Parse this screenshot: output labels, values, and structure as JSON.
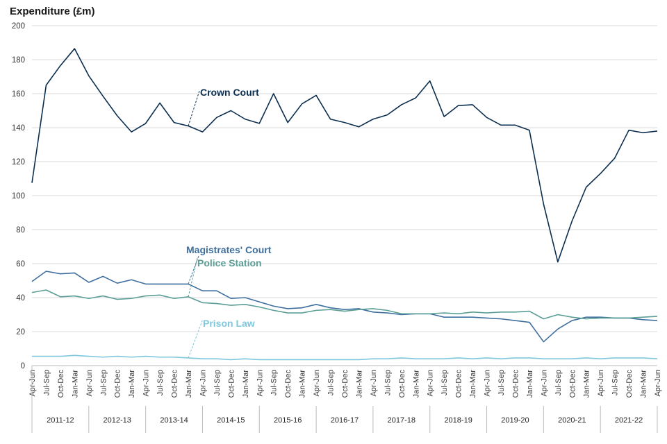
{
  "chart_data": {
    "type": "line",
    "ylabel": "Expenditure (£m)",
    "ylim": [
      0,
      200
    ],
    "yticks": [
      0,
      20,
      40,
      60,
      80,
      100,
      120,
      140,
      160,
      180,
      200
    ],
    "grid": true,
    "quarters": [
      "Apr-Jun",
      "Jul-Sep",
      "Oct-Dec",
      "Jan-Mar",
      "Apr-Jun",
      "Jul-Sep",
      "Oct-Dec",
      "Jan-Mar",
      "Apr-Jun",
      "Jul-Sep",
      "Oct-Dec",
      "Jan-Mar",
      "Apr-Jun",
      "Jul-Sep",
      "Oct-Dec",
      "Jan-Mar",
      "Apr-Jun",
      "Jul-Sep",
      "Oct-Dec",
      "Jan-Mar",
      "Apr-Jun",
      "Jul-Sep",
      "Oct-Dec",
      "Jan-Mar",
      "Apr-Jun",
      "Jul-Sep",
      "Oct-Dec",
      "Jan-Mar",
      "Apr-Jun",
      "Jul-Sep",
      "Oct-Dec",
      "Jan-Mar",
      "Apr-Jun",
      "Jul-Sep",
      "Oct-Dec",
      "Jan-Mar",
      "Apr-Jun",
      "Jul-Sep",
      "Oct-Dec",
      "Jan-Mar",
      "Apr-Jun",
      "Jul-Sep",
      "Oct-Dec",
      "Jan-Mar",
      "Apr-Jun"
    ],
    "financial_years": [
      "2011-12",
      "2012-13",
      "2013-14",
      "2014-15",
      "2015-16",
      "2016-17",
      "2017-18",
      "2018-19",
      "2019-20",
      "2020-21",
      "2021-22"
    ],
    "series": [
      {
        "name": "Crown Court",
        "color": "#0b2e4f",
        "values": [
          107.5,
          165,
          176.5,
          186.5,
          170.5,
          158.5,
          147,
          137.5,
          142.5,
          154.5,
          143,
          141,
          137.5,
          146,
          150,
          145,
          142.5,
          160,
          143,
          154,
          159,
          145,
          143,
          140.5,
          145,
          147.5,
          153.5,
          157.5,
          167.5,
          146.5,
          153,
          153.5,
          146,
          141.5,
          141.5,
          138.5,
          95,
          61,
          85,
          105,
          113,
          122,
          138.5,
          137,
          138
        ]
      },
      {
        "name": "Magistrates' Court",
        "color": "#3f6f9f",
        "values": [
          49.5,
          55.5,
          54,
          54.5,
          49,
          52.5,
          48.5,
          50.5,
          48,
          48,
          48,
          48,
          44,
          44,
          39.5,
          40,
          37.5,
          35,
          33.5,
          34,
          36,
          34,
          33,
          33.5,
          31.5,
          31,
          30,
          30.5,
          30.5,
          28.5,
          28.5,
          28.5,
          28,
          27.5,
          26.5,
          25.5,
          14,
          21.5,
          26.5,
          28.5,
          28.5,
          28,
          28,
          27,
          26.5
        ]
      },
      {
        "name": "Police Station",
        "color": "#5a9e96",
        "values": [
          43,
          44.5,
          40.5,
          41,
          39.5,
          41,
          39,
          39.5,
          41,
          41.5,
          39.5,
          40.5,
          37,
          36.5,
          35.5,
          36,
          34.5,
          32.5,
          31,
          31,
          32.5,
          33,
          32,
          33,
          33.5,
          32.5,
          30.5,
          30.5,
          30.5,
          31,
          30.5,
          31.5,
          31,
          31.5,
          31.5,
          32,
          27.5,
          30,
          28.5,
          27.5,
          28,
          28,
          28,
          28.5,
          29
        ]
      },
      {
        "name": "Prison Law",
        "color": "#7ec7dc",
        "values": [
          5.5,
          5.5,
          5.5,
          6,
          5.5,
          5,
          5.5,
          5,
          5.5,
          5,
          5,
          4.5,
          4,
          4,
          3.5,
          4,
          3.5,
          3.5,
          3.5,
          3.5,
          3.5,
          3.5,
          3.5,
          3.5,
          4,
          4,
          4.5,
          4,
          4,
          4,
          4.5,
          4,
          4.5,
          4,
          4.5,
          4.5,
          4,
          4,
          4,
          4.5,
          4,
          4.5,
          4.5,
          4.5,
          4
        ]
      }
    ],
    "annotations": [
      {
        "text": "Crown Court",
        "series": "Crown Court"
      },
      {
        "text": "Magistrates' Court",
        "series": "Magistrates' Court"
      },
      {
        "text": "Police Station",
        "series": "Police Station"
      },
      {
        "text": "Prison Law",
        "series": "Prison Law"
      }
    ]
  }
}
